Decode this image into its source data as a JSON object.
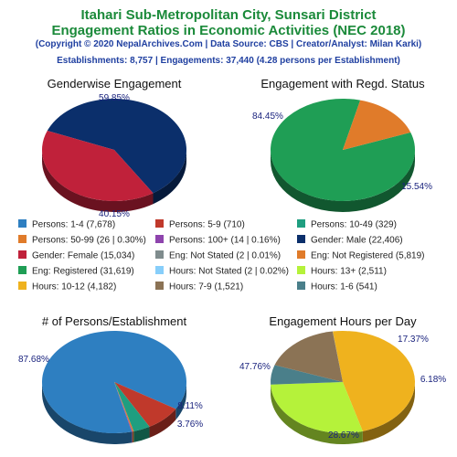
{
  "header": {
    "title_line1": "Itahari Sub-Metropolitan City, Sunsari District",
    "title_line2": "Engagement Ratios in Economic Activities (NEC 2018)",
    "credit": "(Copyright © 2020 NepalArchives.Com | Data Source: CBS | Creator/Analyst: Milan Karki)",
    "summary": "Establishments: 8,757 | Engagements: 37,440 (4.28 persons per Establishment)"
  },
  "legend": [
    {
      "label": "Persons: 1-4 (7,678)",
      "color": "#2e7fc1"
    },
    {
      "label": "Persons: 5-9 (710)",
      "color": "#c0392b"
    },
    {
      "label": "Persons: 10-49 (329)",
      "color": "#1f9e80"
    },
    {
      "label": "Persons: 50-99 (26 | 0.30%)",
      "color": "#e07b2a"
    },
    {
      "label": "Persons: 100+ (14 | 0.16%)",
      "color": "#8e44ad"
    },
    {
      "label": "Gender: Male (22,406)",
      "color": "#0b2f6b"
    },
    {
      "label": "Gender: Female (15,034)",
      "color": "#c0213a"
    },
    {
      "label": "Eng: Not Stated (2 | 0.01%)",
      "color": "#7f8c8d"
    },
    {
      "label": "Eng: Not Registered (5,819)",
      "color": "#e07b2a"
    },
    {
      "label": "Eng: Registered (31,619)",
      "color": "#1f9e55"
    },
    {
      "label": "Hours: Not Stated (2 | 0.02%)",
      "color": "#87cefa"
    },
    {
      "label": "Hours: 13+ (2,511)",
      "color": "#b5f23a"
    },
    {
      "label": "Hours: 10-12 (4,182)",
      "color": "#efb21e"
    },
    {
      "label": "Hours: 7-9 (1,521)",
      "color": "#8b7355"
    },
    {
      "label": "Hours: 1-6 (541)",
      "color": "#4a7f8a"
    }
  ],
  "chart_data": [
    {
      "type": "pie",
      "title": "Genderwise Engagement",
      "slices": [
        {
          "name": "Male",
          "value": 59.85,
          "color": "#0b2f6b",
          "label": "59.85%"
        },
        {
          "name": "Female",
          "value": 40.15,
          "color": "#c0213a",
          "label": "40.15%"
        }
      ]
    },
    {
      "type": "pie",
      "title": "Engagement with Regd. Status",
      "slices": [
        {
          "name": "Registered",
          "value": 84.45,
          "color": "#1f9e55",
          "label": "84.45%"
        },
        {
          "name": "Not Registered",
          "value": 15.54,
          "color": "#e07b2a",
          "label": "15.54%"
        },
        {
          "name": "Not Stated",
          "value": 0.01,
          "color": "#7f8c8d",
          "label": ""
        }
      ]
    },
    {
      "type": "pie",
      "title": "# of Persons/Establishment",
      "slices": [
        {
          "name": "1-4",
          "value": 87.68,
          "color": "#2e7fc1",
          "label": "87.68%"
        },
        {
          "name": "5-9",
          "value": 8.11,
          "color": "#c0392b",
          "label": "8.11%"
        },
        {
          "name": "10-49",
          "value": 3.76,
          "color": "#1f9e80",
          "label": "3.76%"
        },
        {
          "name": "50-99",
          "value": 0.3,
          "color": "#e07b2a",
          "label": ""
        },
        {
          "name": "100+",
          "value": 0.16,
          "color": "#8e44ad",
          "label": ""
        }
      ]
    },
    {
      "type": "pie",
      "title": "Engagement Hours per Day",
      "slices": [
        {
          "name": "10-12",
          "value": 47.76,
          "color": "#efb21e",
          "label": "47.76%"
        },
        {
          "name": "13+",
          "value": 28.67,
          "color": "#b5f23a",
          "label": "28.67%"
        },
        {
          "name": "1-6",
          "value": 6.18,
          "color": "#4a7f8a",
          "label": "6.18%"
        },
        {
          "name": "7-9",
          "value": 17.37,
          "color": "#8b7355",
          "label": "17.37%"
        },
        {
          "name": "Not Stated",
          "value": 0.02,
          "color": "#87cefa",
          "label": ""
        }
      ]
    }
  ]
}
